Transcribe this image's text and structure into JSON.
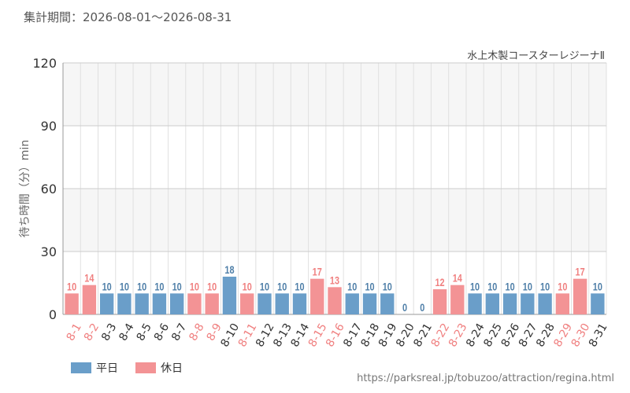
{
  "header": {
    "period": "集計期間：2026-08-01～2026-08-31",
    "attraction": "水上木製コースターレジーナⅡ",
    "url": "https://parksreal.jp/tobuzoo/attraction/regina.html"
  },
  "legend": {
    "weekday_label": "平日",
    "holiday_label": "休日"
  },
  "colors": {
    "weekday": "#6a9ec9",
    "holiday": "#f39395",
    "weekday_text": "#4f7fa8",
    "holiday_text": "#f08080",
    "band": "#f6f6f6",
    "grid": "#e0e0e0"
  },
  "chart_data": {
    "type": "bar",
    "title": "",
    "xlabel": "",
    "ylabel": "待ち時間（分）min",
    "ylim": [
      0,
      120
    ],
    "yticks": [
      0,
      30,
      60,
      90,
      120
    ],
    "categories": [
      "8-1",
      "8-2",
      "8-3",
      "8-4",
      "8-5",
      "8-6",
      "8-7",
      "8-8",
      "8-9",
      "8-10",
      "8-11",
      "8-12",
      "8-13",
      "8-14",
      "8-15",
      "8-16",
      "8-17",
      "8-18",
      "8-19",
      "8-20",
      "8-21",
      "8-22",
      "8-23",
      "8-24",
      "8-25",
      "8-26",
      "8-27",
      "8-28",
      "8-29",
      "8-30",
      "8-31"
    ],
    "values": [
      10,
      14,
      10,
      10,
      10,
      10,
      10,
      10,
      10,
      18,
      10,
      10,
      10,
      10,
      17,
      13,
      10,
      10,
      10,
      0,
      0,
      12,
      14,
      10,
      10,
      10,
      10,
      10,
      10,
      17,
      10
    ],
    "day_type": [
      "holiday",
      "holiday",
      "weekday",
      "weekday",
      "weekday",
      "weekday",
      "weekday",
      "holiday",
      "holiday",
      "weekday",
      "holiday",
      "weekday",
      "weekday",
      "weekday",
      "holiday",
      "holiday",
      "weekday",
      "weekday",
      "weekday",
      "weekday",
      "weekday",
      "holiday",
      "holiday",
      "weekday",
      "weekday",
      "weekday",
      "weekday",
      "weekday",
      "holiday",
      "holiday",
      "weekday"
    ],
    "legend_position": "bottom-left",
    "grid": true
  }
}
